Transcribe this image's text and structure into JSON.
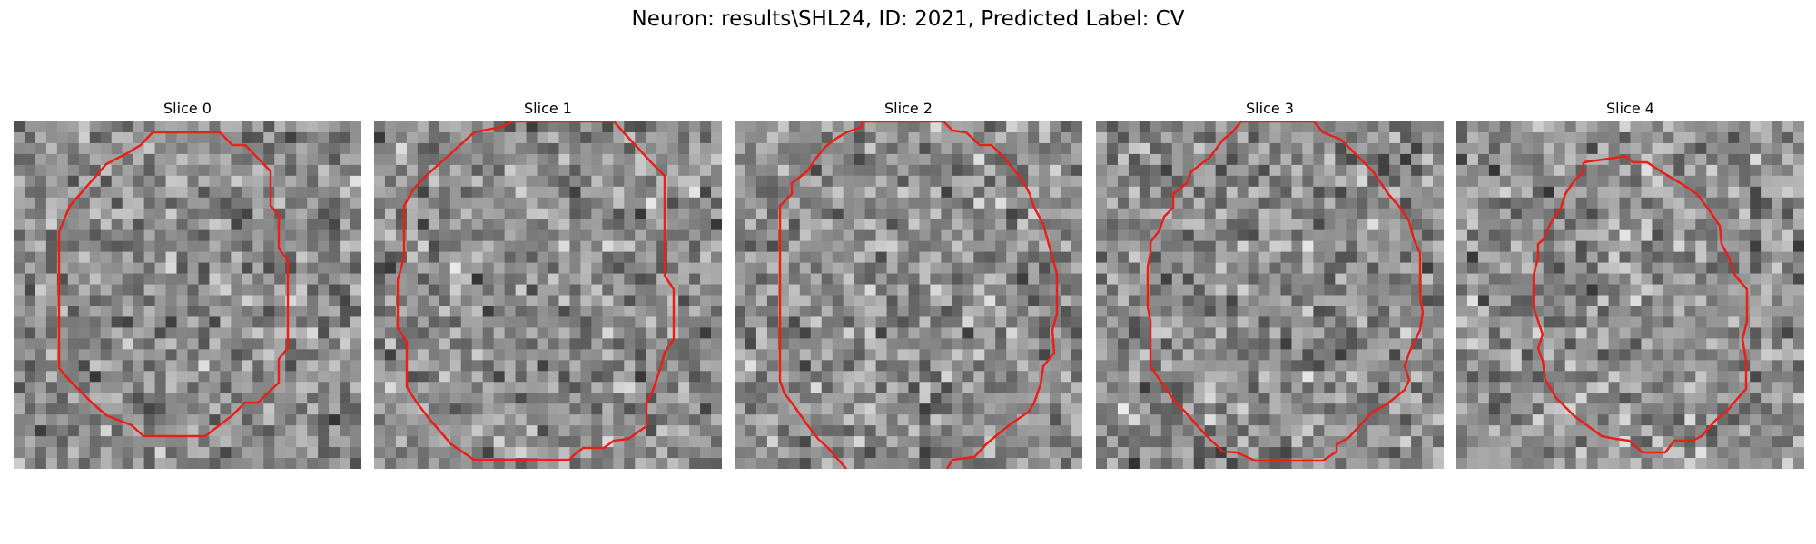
{
  "figure": {
    "title": "Neuron: results\\SHL24, ID: 2021, Predicted Label: CV"
  },
  "panels": [
    {
      "title": "Slice 0"
    },
    {
      "title": "Slice 1"
    },
    {
      "title": "Slice 2"
    },
    {
      "title": "Slice 3"
    },
    {
      "title": "Slice 4"
    }
  ],
  "colors": {
    "contour": "#e8201a",
    "background": "#ffffff"
  }
}
